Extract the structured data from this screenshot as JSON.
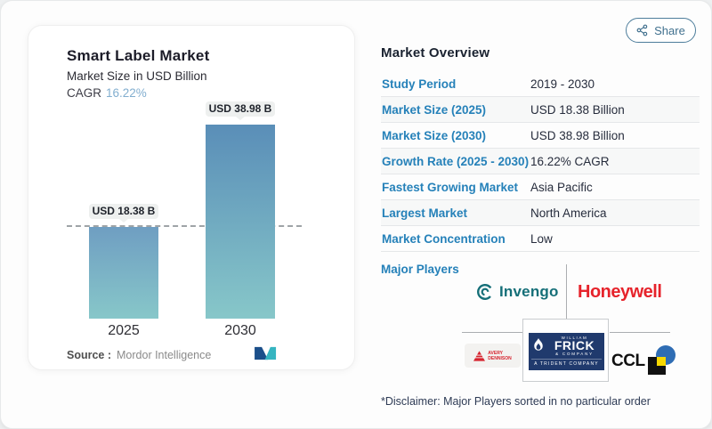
{
  "share": {
    "label": "Share"
  },
  "chart": {
    "title": "Smart Label Market",
    "subtitle": "Market Size in USD Billion",
    "cagr_label": "CAGR",
    "cagr_value": "16.22%",
    "source_label": "Source :",
    "source_value": "Mordor Intelligence"
  },
  "chart_data": {
    "type": "bar",
    "title": "Smart Label Market",
    "subtitle": "Market Size in USD Billion",
    "unit": "USD Billion",
    "cagr_pct": 16.22,
    "categories": [
      "2025",
      "2030"
    ],
    "values": [
      18.38,
      38.98
    ],
    "bar_labels": [
      "USD 18.38 B",
      "USD 38.98 B"
    ],
    "reference_line": {
      "y": 18.38,
      "style": "dashed"
    },
    "colors": {
      "bar_top": "#5a8eb8",
      "bar_bottom": "#87c7c9"
    },
    "legend": "none",
    "grid": "off"
  },
  "overview": {
    "heading": "Market Overview",
    "rows": [
      {
        "label": "Study Period",
        "value": "2019 - 2030"
      },
      {
        "label": "Market Size (2025)",
        "value": "USD 18.38 Billion"
      },
      {
        "label": "Market Size (2030)",
        "value": "USD 38.98 Billion"
      },
      {
        "label": "Growth Rate (2025 - 2030)",
        "value": "16.22% CAGR"
      },
      {
        "label": "Fastest Growing Market",
        "value": "Asia Pacific"
      },
      {
        "label": "Largest Market",
        "value": "North America"
      },
      {
        "label": "Market Concentration",
        "value": "Low"
      }
    ],
    "major_players_label": "Major Players",
    "disclaimer": "*Disclaimer: Major Players sorted in no particular order"
  },
  "logos": {
    "invengo": {
      "text": "Invengo",
      "color": "#156f78"
    },
    "honeywell": {
      "text": "Honeywell",
      "color": "#e6232b"
    },
    "avery": {
      "line1": "AVERY",
      "line2": "DENNISON",
      "color": "#d6232e"
    },
    "frick": {
      "top": "WILLIAM",
      "main": "FRICK",
      "sub": "& COMPANY",
      "bottom": "A TRIDENT COMPANY",
      "bg": "#203a6d"
    },
    "ccl": {
      "text": "CCL"
    }
  }
}
